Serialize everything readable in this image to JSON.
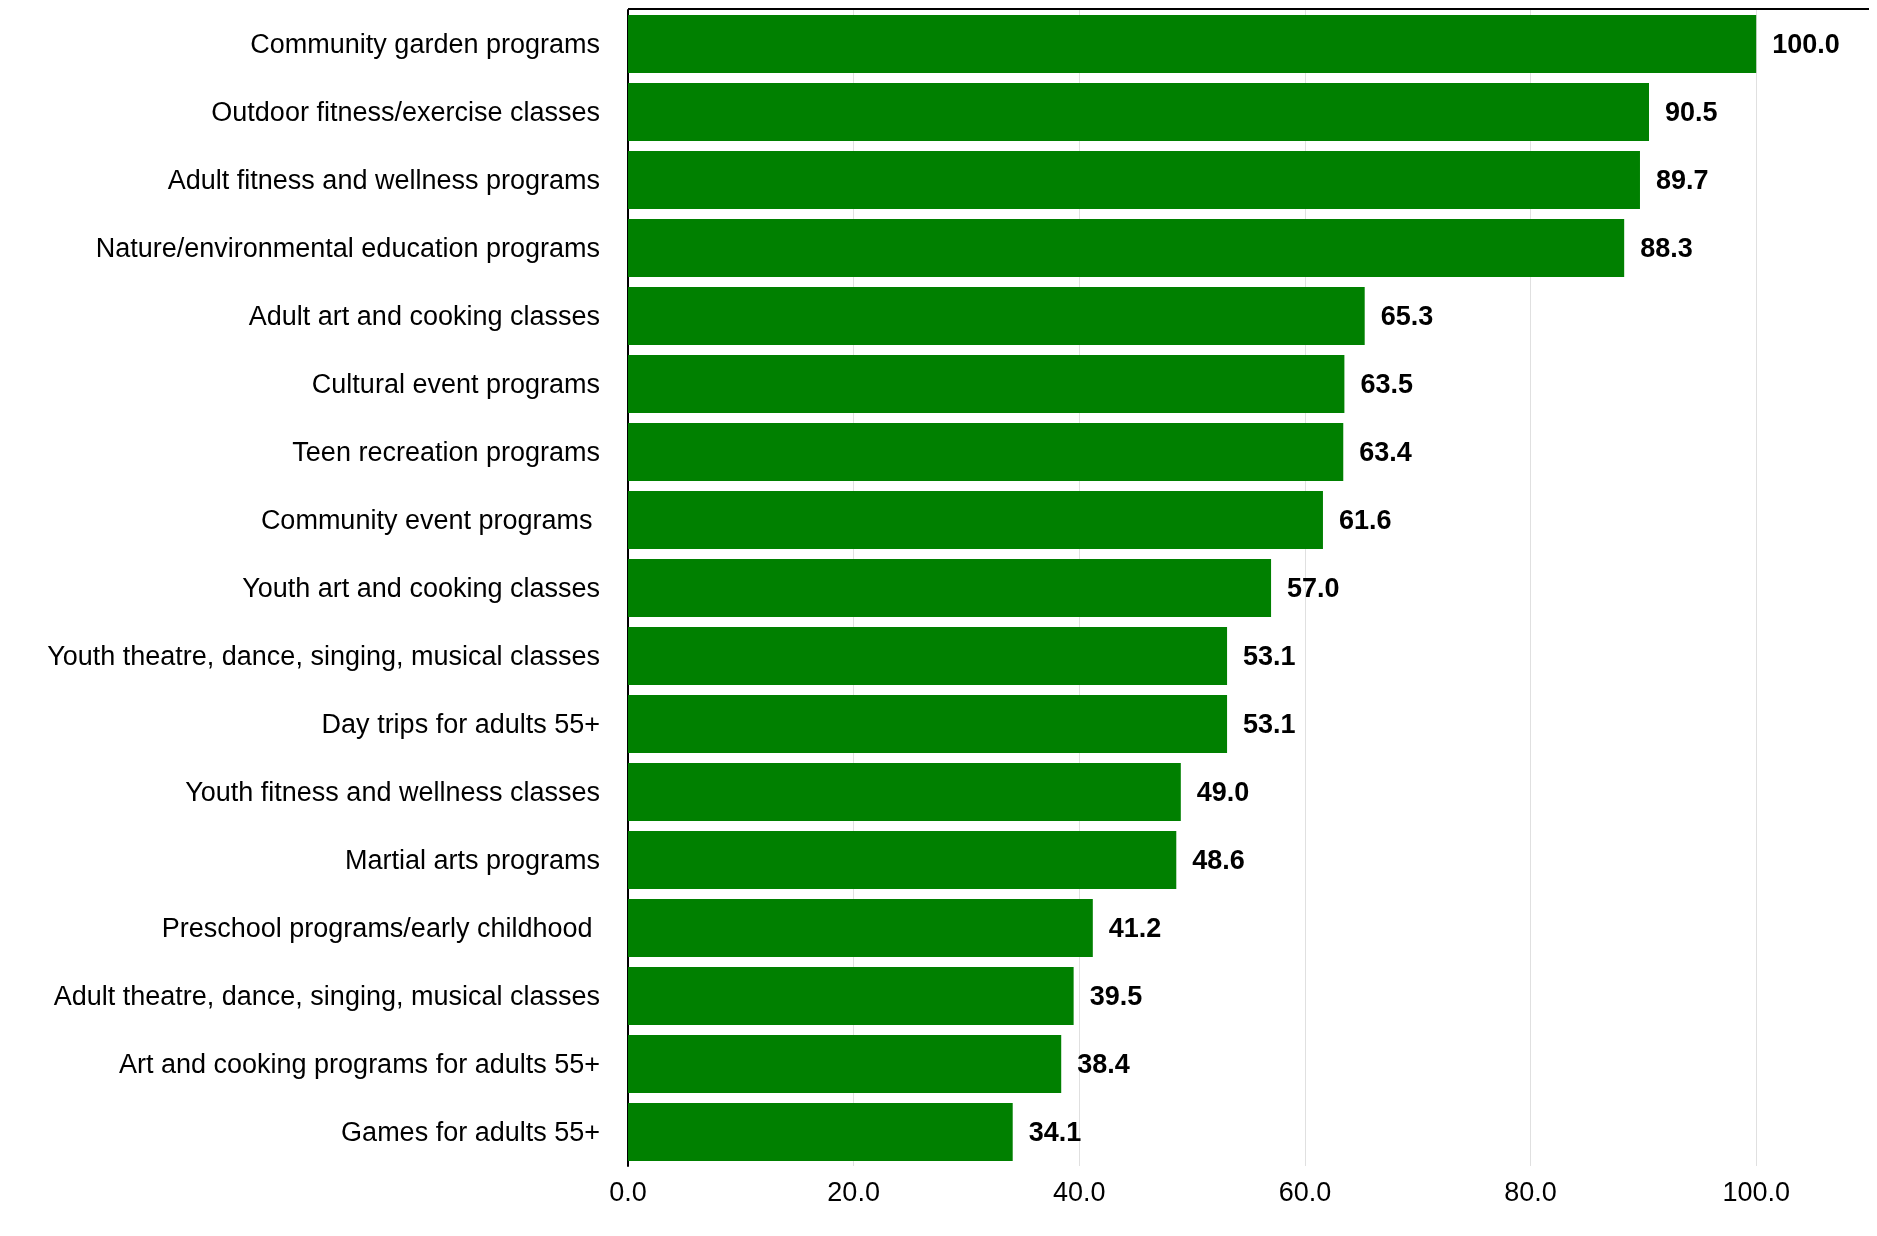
{
  "chart_data": {
    "type": "bar",
    "orientation": "horizontal",
    "categories": [
      "Community garden programs",
      "Outdoor fitness/exercise classes",
      "Adult fitness and wellness programs",
      "Nature/environmental education programs",
      "Adult art and cooking classes",
      "Cultural event programs",
      "Teen recreation programs",
      "Community event programs ",
      "Youth art and cooking classes",
      "Youth theatre, dance, singing, musical classes",
      "Day trips for adults 55+",
      "Youth fitness and wellness classes",
      "Martial arts programs",
      "Preschool programs/early childhood ",
      "Adult theatre, dance, singing, musical classes",
      "Art and cooking programs for adults 55+",
      "Games for adults 55+"
    ],
    "values": [
      100.0,
      90.5,
      89.7,
      88.3,
      65.3,
      63.5,
      63.4,
      61.6,
      57.0,
      53.1,
      53.1,
      49.0,
      48.6,
      41.2,
      39.5,
      38.4,
      34.1
    ],
    "value_labels": [
      "100.0",
      "90.5",
      "89.7",
      "88.3",
      "65.3",
      "63.5",
      "63.4",
      "61.6",
      "57.0",
      "53.1",
      "53.1",
      "49.0",
      "48.6",
      "41.2",
      "39.5",
      "38.4",
      "34.1"
    ],
    "color": "#008000",
    "xlim": [
      0,
      110
    ],
    "xticks": [
      {
        "value": 0,
        "label": "0.0"
      },
      {
        "value": 20,
        "label": "20.0"
      },
      {
        "value": 40,
        "label": "40.0"
      },
      {
        "value": 60,
        "label": "60.0"
      },
      {
        "value": 80,
        "label": "80.0"
      },
      {
        "value": 100,
        "label": "100.0"
      }
    ],
    "grid": "x"
  }
}
